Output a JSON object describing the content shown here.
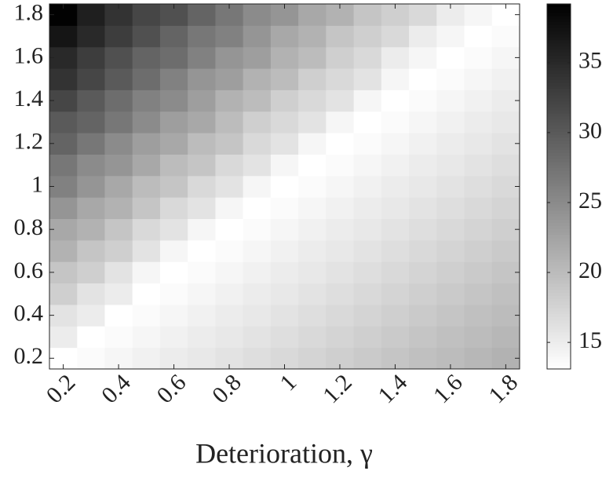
{
  "chart_data": {
    "type": "heatmap",
    "x_label": "Deterioration, γ",
    "x": [
      0.2,
      0.3,
      0.4,
      0.5,
      0.6,
      0.7,
      0.8,
      0.9,
      1,
      1.1,
      1.2,
      1.3,
      1.4,
      1.5,
      1.6,
      1.7,
      1.8
    ],
    "y": [
      0.2,
      0.3,
      0.4,
      0.5,
      0.6,
      0.7,
      0.8,
      0.9,
      1,
      1.1,
      1.2,
      1.3,
      1.4,
      1.5,
      1.6,
      1.7,
      1.8
    ],
    "values": [
      [
        13,
        13.5,
        14,
        14.5,
        15,
        15.5,
        16,
        16.5,
        17,
        17.5,
        18,
        18.5,
        19,
        19.5,
        20,
        20.5,
        21
      ],
      [
        15,
        13,
        13.5,
        14,
        14.5,
        15,
        15.5,
        16,
        16.5,
        17,
        17.5,
        18,
        18.5,
        19,
        19.5,
        20,
        20.5
      ],
      [
        16,
        15,
        13,
        13.5,
        14,
        14.5,
        15,
        15.5,
        16,
        16.5,
        17,
        17.5,
        18,
        18.5,
        19,
        19.5,
        20
      ],
      [
        18,
        16,
        15,
        13,
        13.5,
        14,
        14.5,
        15,
        15.5,
        16,
        16.5,
        17,
        17.5,
        18,
        18.5,
        19,
        19.5
      ],
      [
        19,
        18,
        16,
        14,
        13,
        13.5,
        14,
        14.5,
        15,
        15.5,
        16,
        16.5,
        17,
        17.5,
        18,
        18.5,
        19
      ],
      [
        21,
        19,
        18,
        16,
        14,
        13,
        13.5,
        14,
        14.5,
        15,
        15.5,
        16,
        16.5,
        17,
        17.5,
        18,
        18.5
      ],
      [
        22,
        21,
        19,
        17,
        16,
        14,
        13,
        13.5,
        14,
        14.5,
        15,
        15.5,
        16,
        16.5,
        17,
        17.5,
        18
      ],
      [
        24,
        22,
        21,
        19,
        17,
        16,
        14,
        13,
        13.5,
        14,
        14.5,
        15,
        15.5,
        16,
        16.5,
        17,
        17.5
      ],
      [
        26,
        24,
        22,
        20,
        19,
        17,
        16,
        14,
        13,
        13.5,
        14,
        14.5,
        15,
        15.5,
        16,
        16.5,
        17
      ],
      [
        27,
        25,
        24,
        22,
        20,
        19,
        17,
        16,
        14,
        13,
        13.5,
        14,
        14.5,
        15,
        15.5,
        16,
        16.5
      ],
      [
        29,
        27,
        25,
        23,
        22,
        20,
        19,
        17,
        16,
        14,
        13,
        13.5,
        14,
        14.5,
        15,
        15.5,
        16
      ],
      [
        30,
        29,
        27,
        25,
        23,
        22,
        20,
        18,
        17,
        16,
        14,
        13,
        13.5,
        14,
        14.5,
        15,
        15.5
      ],
      [
        32,
        30,
        28,
        26,
        25,
        23,
        21,
        20,
        18,
        17,
        16,
        14,
        13,
        13.5,
        14,
        14.5,
        15
      ],
      [
        34,
        32,
        30,
        28,
        26,
        24,
        23,
        21,
        20,
        18,
        17,
        16,
        14,
        13,
        13.5,
        14,
        14.5
      ],
      [
        35,
        33,
        31,
        29,
        28,
        26,
        24,
        23,
        21,
        20,
        18,
        17,
        15,
        14,
        13,
        13.5,
        14
      ],
      [
        37,
        35,
        33,
        31,
        29,
        27,
        26,
        24,
        22,
        21,
        19,
        18,
        17,
        15,
        14,
        13,
        13.5
      ],
      [
        39,
        36,
        34,
        32,
        31,
        29,
        27,
        25,
        24,
        22,
        21,
        19,
        18,
        17,
        15,
        14,
        13
      ]
    ],
    "xlim": [
      0.15,
      1.85
    ],
    "ylim": [
      0.15,
      1.85
    ],
    "xticks": [
      0.2,
      0.4,
      0.6,
      0.8,
      1,
      1.2,
      1.4,
      1.6,
      1.8
    ],
    "yticks": [
      0.2,
      0.4,
      0.6,
      0.8,
      1,
      1.2,
      1.4,
      1.6,
      1.8
    ],
    "colormap": "gray-reversed",
    "clim": [
      13.1,
      39.2
    ],
    "cticks": [
      15,
      20,
      25,
      30,
      35
    ]
  }
}
